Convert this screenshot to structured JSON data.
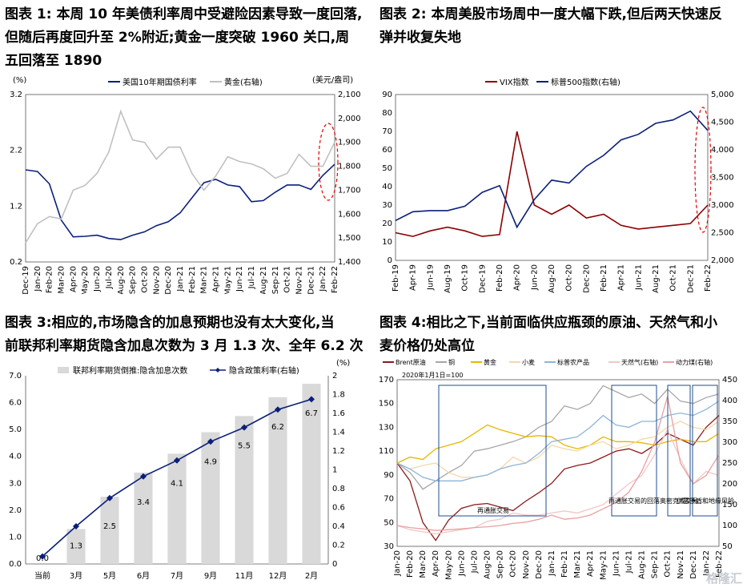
{
  "panels": [
    {
      "id": "p1",
      "title_lines": [
        "图表 1: 本周 10 年美债利率周中受避险因素导致一度回落,",
        "但随后再度回升至 2%附近;黄金一度突破 1960 关口,周",
        "五回落至 1890"
      ],
      "chart_data": {
        "type": "line",
        "left_unit": "(%)",
        "right_unit": "(美元/盎司)",
        "legend": [
          "美国10年期国债利率",
          "黄金(右轴)"
        ],
        "x_labels": [
          "Dec-19",
          "Jan-20",
          "Feb-20",
          "Mar-20",
          "Apr-20",
          "May-20",
          "Jun-20",
          "Jul-20",
          "Aug-20",
          "Sep-20",
          "Oct-20",
          "Nov-20",
          "Dec-20",
          "Jan-21",
          "Feb-21",
          "Mar-21",
          "Apr-21",
          "May-21",
          "Jun-21",
          "Jul-21",
          "Aug-21",
          "Sep-21",
          "Oct-21",
          "Nov-21",
          "Dec-21",
          "Jan-22",
          "Feb-22"
        ],
        "ylim_left": [
          0.2,
          3.2
        ],
        "yticks_left": [
          "0.2",
          "1.2",
          "2.2",
          "3.2"
        ],
        "ylim_right": [
          1400,
          2100
        ],
        "yticks_right": [
          "1,400",
          "1,500",
          "1,600",
          "1,700",
          "1,800",
          "1,900",
          "2,000",
          "2,100"
        ],
        "series": [
          {
            "name": "美国10年期国债利率",
            "axis": "left",
            "color": "#0b1f7a",
            "values": [
              1.85,
              1.82,
              1.6,
              0.95,
              0.65,
              0.66,
              0.68,
              0.62,
              0.6,
              0.68,
              0.74,
              0.85,
              0.92,
              1.08,
              1.35,
              1.62,
              1.68,
              1.58,
              1.55,
              1.28,
              1.3,
              1.45,
              1.58,
              1.58,
              1.5,
              1.75,
              1.95
            ]
          },
          {
            "name": "黄金(右轴)",
            "axis": "right",
            "color": "#c0c0c0",
            "values": [
              1480,
              1560,
              1590,
              1580,
              1700,
              1720,
              1770,
              1860,
              2030,
              1910,
              1900,
              1830,
              1880,
              1880,
              1770,
              1700,
              1760,
              1840,
              1820,
              1810,
              1790,
              1750,
              1770,
              1850,
              1800,
              1800,
              1900
            ]
          }
        ]
      }
    },
    {
      "id": "p2",
      "title_lines": [
        "图表 2: 本周美股市场周中一度大幅下跌,但后两天快速反",
        "弹并收复失地"
      ],
      "chart_data": {
        "type": "line",
        "legend": [
          "VIX指数",
          "标普500指数(右轴)"
        ],
        "x_labels": [
          "Feb-19",
          "Apr-19",
          "Jun-19",
          "Aug-19",
          "Oct-19",
          "Dec-19",
          "Feb-20",
          "Apr-20",
          "Jun-20",
          "Aug-20",
          "Oct-20",
          "Dec-20",
          "Feb-21",
          "Apr-21",
          "Jun-21",
          "Aug-21",
          "Oct-21",
          "Dec-21",
          "Feb-22"
        ],
        "ylim_left": [
          0,
          90
        ],
        "yticks_left": [
          "0",
          "10",
          "20",
          "30",
          "40",
          "50",
          "60",
          "70",
          "80",
          "90"
        ],
        "ylim_right": [
          2000,
          5000
        ],
        "yticks_right": [
          "2,000",
          "2,500",
          "3,000",
          "3,500",
          "4,000",
          "4,500",
          "5,000"
        ],
        "series": [
          {
            "name": "VIX指数",
            "axis": "left",
            "color": "#8b0000",
            "values": [
              15,
              13,
              16,
              18,
              16,
              13,
              14,
              70,
              30,
              25,
              30,
              23,
              25,
              19,
              17,
              18,
              19,
              20,
              30
            ]
          },
          {
            "name": "标普500指数(右轴)",
            "axis": "right",
            "color": "#0b1f7a",
            "values": [
              2720,
              2880,
              2900,
              2900,
              2980,
              3230,
              3350,
              2600,
              3100,
              3450,
              3400,
              3700,
              3900,
              4180,
              4280,
              4480,
              4540,
              4700,
              4350
            ]
          }
        ]
      }
    },
    {
      "id": "p3",
      "title_lines": [
        "图表 3:相应的,市场隐含的加息预期也没有太大变化,当",
        "前联邦利率期货隐含加息次数为 3 月 1.3 次、全年 6.2 次"
      ],
      "chart_data": {
        "type": "bar",
        "right_unit": "(%)",
        "legend": [
          "联邦利率期货倒推:隐含加息次数",
          "隐含政策利率(右轴)"
        ],
        "categories": [
          "当前",
          "3月",
          "5月",
          "6月",
          "7月",
          "9月",
          "11月",
          "12月",
          "2月"
        ],
        "ylim_left": [
          0,
          7
        ],
        "yticks_left": [
          "0.0",
          "1.0",
          "2.0",
          "3.0",
          "4.0",
          "5.0",
          "6.0",
          "7.0"
        ],
        "ylim_right": [
          0,
          2
        ],
        "yticks_right": [
          "0",
          "0.2",
          "0.4",
          "0.6",
          "0.8",
          "1",
          "1.2",
          "1.4",
          "1.6",
          "1.8",
          "2"
        ],
        "series": [
          {
            "name": "联邦利率期货倒推:隐含加息次数",
            "axis": "left",
            "color": "#d9d9d9",
            "values": [
              0.0,
              1.3,
              2.5,
              3.4,
              4.1,
              4.9,
              5.5,
              6.2,
              6.7
            ],
            "labels": [
              "0.0",
              "1.3",
              "2.5",
              "3.4",
              "4.1",
              "4.9",
              "5.5",
              "6.2",
              "6.7"
            ]
          },
          {
            "name": "隐含政策利率(右轴)",
            "axis": "right",
            "color": "#0b1f7a",
            "values": [
              0.08,
              0.4,
              0.7,
              0.93,
              1.1,
              1.3,
              1.45,
              1.64,
              1.75
            ]
          }
        ]
      }
    },
    {
      "id": "p4",
      "title_lines": [
        "图表 4:相比之下,当前面临供应瓶颈的原油、天然气和小",
        "麦价格仍处高位"
      ],
      "chart_data": {
        "type": "line",
        "base_note": "2020年1月1日=100",
        "legend": [
          "Brent原油",
          "铜",
          "黄金",
          "小麦",
          "标普农产品",
          "天然气(右轴)",
          "动力煤(右轴)"
        ],
        "x_labels": [
          "Jan-20",
          "Feb-20",
          "Mar-20",
          "Apr-20",
          "May-20",
          "Jun-20",
          "Jul-20",
          "Aug-20",
          "Sep-20",
          "Oct-20",
          "Nov-20",
          "Dec-20",
          "Jan-21",
          "Feb-21",
          "Mar-21",
          "Apr-21",
          "May-21",
          "Jun-21",
          "Jul-21",
          "Aug-21",
          "Sep-21",
          "Oct-21",
          "Nov-21",
          "Dec-21",
          "Jan-22",
          "Feb-22"
        ],
        "ylim_left": [
          30,
          170
        ],
        "yticks_left": [
          "30",
          "50",
          "70",
          "90",
          "110",
          "130",
          "150",
          "170"
        ],
        "ylim_right": [
          50,
          450
        ],
        "yticks_right": [
          "50",
          "100",
          "150",
          "200",
          "250",
          "300",
          "350",
          "400",
          "450"
        ],
        "annotations": [
          "再通胀交易",
          "再通胀交易的回落",
          "奥密克戎交易",
          "供需矛盾和地缘风险"
        ],
        "series": [
          {
            "name": "Brent原油",
            "axis": "left",
            "color": "#8b1a1a",
            "values": [
              100,
              85,
              50,
              35,
              52,
              62,
              65,
              66,
              63,
              60,
              68,
              75,
              83,
              95,
              98,
              100,
              105,
              110,
              112,
              108,
              115,
              125,
              120,
              115,
              130,
              140
            ]
          },
          {
            "name": "铜",
            "axis": "left",
            "color": "#a6a6a6",
            "values": [
              100,
              92,
              78,
              85,
              92,
              98,
              110,
              112,
              115,
              118,
              122,
              130,
              135,
              148,
              145,
              150,
              165,
              160,
              155,
              158,
              150,
              162,
              152,
              150,
              155,
              158
            ]
          },
          {
            "name": "黄金",
            "axis": "left",
            "color": "#e6b800",
            "values": [
              100,
              105,
              103,
              112,
              115,
              118,
              125,
              132,
              128,
              125,
              122,
              123,
              122,
              115,
              112,
              115,
              122,
              118,
              118,
              117,
              115,
              118,
              120,
              118,
              118,
              125
            ]
          },
          {
            "name": "小麦",
            "axis": "left",
            "color": "#f5d7a8",
            "values": [
              100,
              95,
              98,
              100,
              92,
              88,
              88,
              90,
              95,
              105,
              100,
              105,
              115,
              112,
              110,
              115,
              118,
              112,
              115,
              120,
              122,
              130,
              135,
              130,
              128,
              135
            ]
          },
          {
            "name": "标普农产品",
            "axis": "left",
            "color": "#8eb4d9",
            "values": [
              100,
              95,
              88,
              85,
              85,
              85,
              88,
              90,
              95,
              98,
              100,
              108,
              118,
              120,
              122,
              130,
              140,
              132,
              130,
              135,
              135,
              140,
              142,
              140,
              145,
              152
            ]
          },
          {
            "name": "天然气(右轴)",
            "axis": "right",
            "color": "#f2c7c7",
            "values": [
              100,
              90,
              85,
              80,
              85,
              90,
              95,
              110,
              115,
              130,
              125,
              125,
              130,
              135,
              130,
              140,
              150,
              175,
              200,
              220,
              270,
              330,
              260,
              200,
              230,
              220
            ]
          },
          {
            "name": "动力煤(右轴)",
            "axis": "right",
            "color": "#e8a0a0",
            "values": [
              100,
              95,
              92,
              88,
              90,
              92,
              95,
              97,
              100,
              105,
              108,
              115,
              125,
              115,
              118,
              125,
              140,
              155,
              180,
              230,
              300,
              410,
              250,
              200,
              220,
              270
            ]
          }
        ]
      }
    }
  ],
  "watermark": "格隆汇"
}
